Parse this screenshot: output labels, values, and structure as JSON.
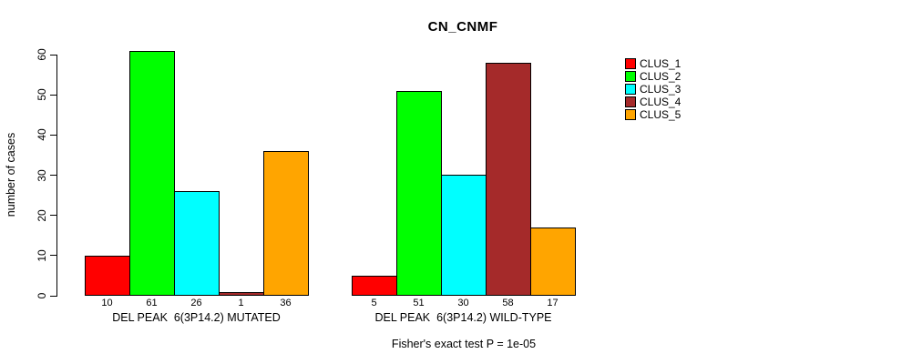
{
  "chart_data": {
    "type": "bar",
    "title": "CN_CNMF",
    "ylabel": "number of cases",
    "xlabel": "",
    "ylim": [
      0,
      61
    ],
    "yticks": [
      0,
      10,
      20,
      30,
      40,
      50,
      60
    ],
    "grid": false,
    "legend_position": "right",
    "bar_value_labels_shown": true,
    "annotation": "Fisher's exact test P = 1e-05",
    "categories": [
      "DEL PEAK  6(3P14.2) MUTATED",
      "DEL PEAK  6(3P14.2) WILD-TYPE"
    ],
    "series": [
      {
        "name": "CLUS_1",
        "color": "#FF0000",
        "values": [
          10,
          5
        ]
      },
      {
        "name": "CLUS_2",
        "color": "#00FF00",
        "values": [
          61,
          51
        ]
      },
      {
        "name": "CLUS_3",
        "color": "#00FFFF",
        "values": [
          26,
          30
        ]
      },
      {
        "name": "CLUS_4",
        "color": "#A52A2A",
        "values": [
          1,
          58
        ]
      },
      {
        "name": "CLUS_5",
        "color": "#FFA500",
        "values": [
          36,
          17
        ]
      }
    ]
  }
}
